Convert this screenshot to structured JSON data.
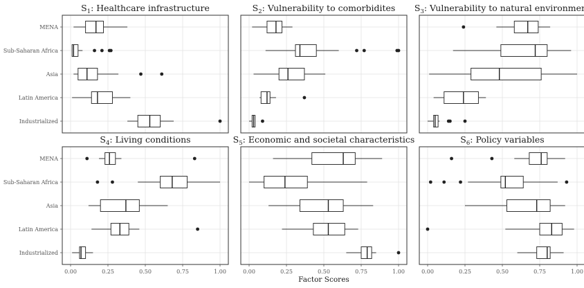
{
  "chart_data": {
    "type": "boxplot",
    "xlabel": "Factor Scores",
    "xlim": [
      0,
      1
    ],
    "x_ticks": [
      "0.00",
      "0.25",
      "0.50",
      "0.75",
      "1.00"
    ],
    "grid": true,
    "categories": [
      "MENA",
      "Sub-Saharan Africa",
      "Asia",
      "Latin America",
      "Industrialized"
    ],
    "panels": [
      {
        "title_prefix": "S",
        "title_sub": "1",
        "title_text": ": Healthcare infrastructure",
        "boxes": [
          {
            "category": "MENA",
            "min": 0.02,
            "q1": 0.1,
            "median": 0.17,
            "q3": 0.22,
            "max": 0.38,
            "outliers": []
          },
          {
            "category": "Sub-Saharan Africa",
            "min": 0.01,
            "q1": 0.01,
            "median": 0.02,
            "q3": 0.05,
            "max": 0.08,
            "outliers": [
              0.16,
              0.21,
              0.26,
              0.27
            ]
          },
          {
            "category": "Asia",
            "min": 0.02,
            "q1": 0.05,
            "median": 0.11,
            "q3": 0.18,
            "max": 0.32,
            "outliers": [
              0.47,
              0.61
            ]
          },
          {
            "category": "Latin America",
            "min": 0.01,
            "q1": 0.14,
            "median": 0.18,
            "q3": 0.28,
            "max": 0.4,
            "outliers": []
          },
          {
            "category": "Industrialized",
            "min": 0.38,
            "q1": 0.45,
            "median": 0.53,
            "q3": 0.6,
            "max": 0.69,
            "outliers": [
              1.0
            ]
          }
        ]
      },
      {
        "title_prefix": "S",
        "title_sub": "2",
        "title_text": ": Vulnerability to comorbidites",
        "boxes": [
          {
            "category": "MENA",
            "min": 0.02,
            "q1": 0.12,
            "median": 0.18,
            "q3": 0.22,
            "max": 0.29,
            "outliers": []
          },
          {
            "category": "Sub-Saharan Africa",
            "min": 0.11,
            "q1": 0.31,
            "median": 0.34,
            "q3": 0.45,
            "max": 0.6,
            "outliers": [
              0.72,
              0.77,
              0.99,
              1.0
            ]
          },
          {
            "category": "Asia",
            "min": 0.03,
            "q1": 0.2,
            "median": 0.26,
            "q3": 0.37,
            "max": 0.51,
            "outliers": []
          },
          {
            "category": "Latin America",
            "min": 0.07,
            "q1": 0.08,
            "median": 0.12,
            "q3": 0.14,
            "max": 0.18,
            "outliers": [
              0.37
            ]
          },
          {
            "category": "Industrialized",
            "min": 0.0,
            "q1": 0.02,
            "median": 0.03,
            "q3": 0.04,
            "max": 0.04,
            "outliers": [
              0.09
            ]
          }
        ]
      },
      {
        "title_prefix": "S",
        "title_sub": "3",
        "title_text": ": Vulnerability to natural environment",
        "boxes": [
          {
            "category": "MENA",
            "min": 0.46,
            "q1": 0.58,
            "median": 0.67,
            "q3": 0.74,
            "max": 0.82,
            "outliers": [
              0.24
            ]
          },
          {
            "category": "Sub-Saharan Africa",
            "min": 0.17,
            "q1": 0.49,
            "median": 0.72,
            "q3": 0.8,
            "max": 0.96,
            "outliers": []
          },
          {
            "category": "Asia",
            "min": 0.01,
            "q1": 0.29,
            "median": 0.48,
            "q3": 0.76,
            "max": 1.0,
            "outliers": []
          },
          {
            "category": "Latin America",
            "min": 0.04,
            "q1": 0.11,
            "median": 0.24,
            "q3": 0.34,
            "max": 0.39,
            "outliers": []
          },
          {
            "category": "Industrialized",
            "min": 0.0,
            "q1": 0.04,
            "median": 0.05,
            "q3": 0.07,
            "max": 0.08,
            "outliers": [
              0.14,
              0.15,
              0.25
            ]
          }
        ]
      },
      {
        "title_prefix": "S",
        "title_sub": "4",
        "title_text": ": Living conditions",
        "boxes": [
          {
            "category": "MENA",
            "min": 0.19,
            "q1": 0.23,
            "median": 0.26,
            "q3": 0.3,
            "max": 0.34,
            "outliers": [
              0.11,
              0.83
            ]
          },
          {
            "category": "Sub-Saharan Africa",
            "min": 0.45,
            "q1": 0.6,
            "median": 0.68,
            "q3": 0.78,
            "max": 1.0,
            "outliers": [
              0.18,
              0.28
            ]
          },
          {
            "category": "Asia",
            "min": 0.12,
            "q1": 0.2,
            "median": 0.37,
            "q3": 0.46,
            "max": 0.65,
            "outliers": []
          },
          {
            "category": "Latin America",
            "min": 0.14,
            "q1": 0.27,
            "median": 0.33,
            "q3": 0.39,
            "max": 0.46,
            "outliers": [
              0.85
            ]
          },
          {
            "category": "Industrialized",
            "min": 0.01,
            "q1": 0.06,
            "median": 0.07,
            "q3": 0.1,
            "max": 0.15,
            "outliers": []
          }
        ]
      },
      {
        "title_prefix": "S",
        "title_sub": "5",
        "title_text": ": Economic and societal characteristics",
        "boxes": [
          {
            "category": "MENA",
            "min": 0.16,
            "q1": 0.42,
            "median": 0.63,
            "q3": 0.71,
            "max": 0.89,
            "outliers": []
          },
          {
            "category": "Sub-Saharan Africa",
            "min": 0.0,
            "q1": 0.1,
            "median": 0.24,
            "q3": 0.39,
            "max": 0.79,
            "outliers": []
          },
          {
            "category": "Asia",
            "min": 0.13,
            "q1": 0.34,
            "median": 0.53,
            "q3": 0.63,
            "max": 0.83,
            "outliers": []
          },
          {
            "category": "Latin America",
            "min": 0.22,
            "q1": 0.43,
            "median": 0.53,
            "q3": 0.64,
            "max": 0.73,
            "outliers": []
          },
          {
            "category": "Industrialized",
            "min": 0.65,
            "q1": 0.75,
            "median": 0.79,
            "q3": 0.82,
            "max": 0.85,
            "outliers": [
              1.0
            ]
          }
        ]
      },
      {
        "title_prefix": "S",
        "title_sub": "6",
        "title_text": ": Policy variables",
        "boxes": [
          {
            "category": "MENA",
            "min": 0.58,
            "q1": 0.68,
            "median": 0.76,
            "q3": 0.8,
            "max": 0.92,
            "outliers": [
              0.16,
              0.43
            ]
          },
          {
            "category": "Sub-Saharan Africa",
            "min": 0.27,
            "q1": 0.49,
            "median": 0.52,
            "q3": 0.64,
            "max": 0.87,
            "outliers": [
              0.02,
              0.11,
              0.22,
              0.93
            ]
          },
          {
            "category": "Asia",
            "min": 0.25,
            "q1": 0.53,
            "median": 0.73,
            "q3": 0.82,
            "max": 0.92,
            "outliers": []
          },
          {
            "category": "Latin America",
            "min": 0.52,
            "q1": 0.75,
            "median": 0.83,
            "q3": 0.9,
            "max": 0.98,
            "outliers": [
              0.0
            ]
          },
          {
            "category": "Industrialized",
            "min": 0.6,
            "q1": 0.73,
            "median": 0.8,
            "q3": 0.82,
            "max": 0.91,
            "outliers": []
          }
        ]
      }
    ]
  }
}
